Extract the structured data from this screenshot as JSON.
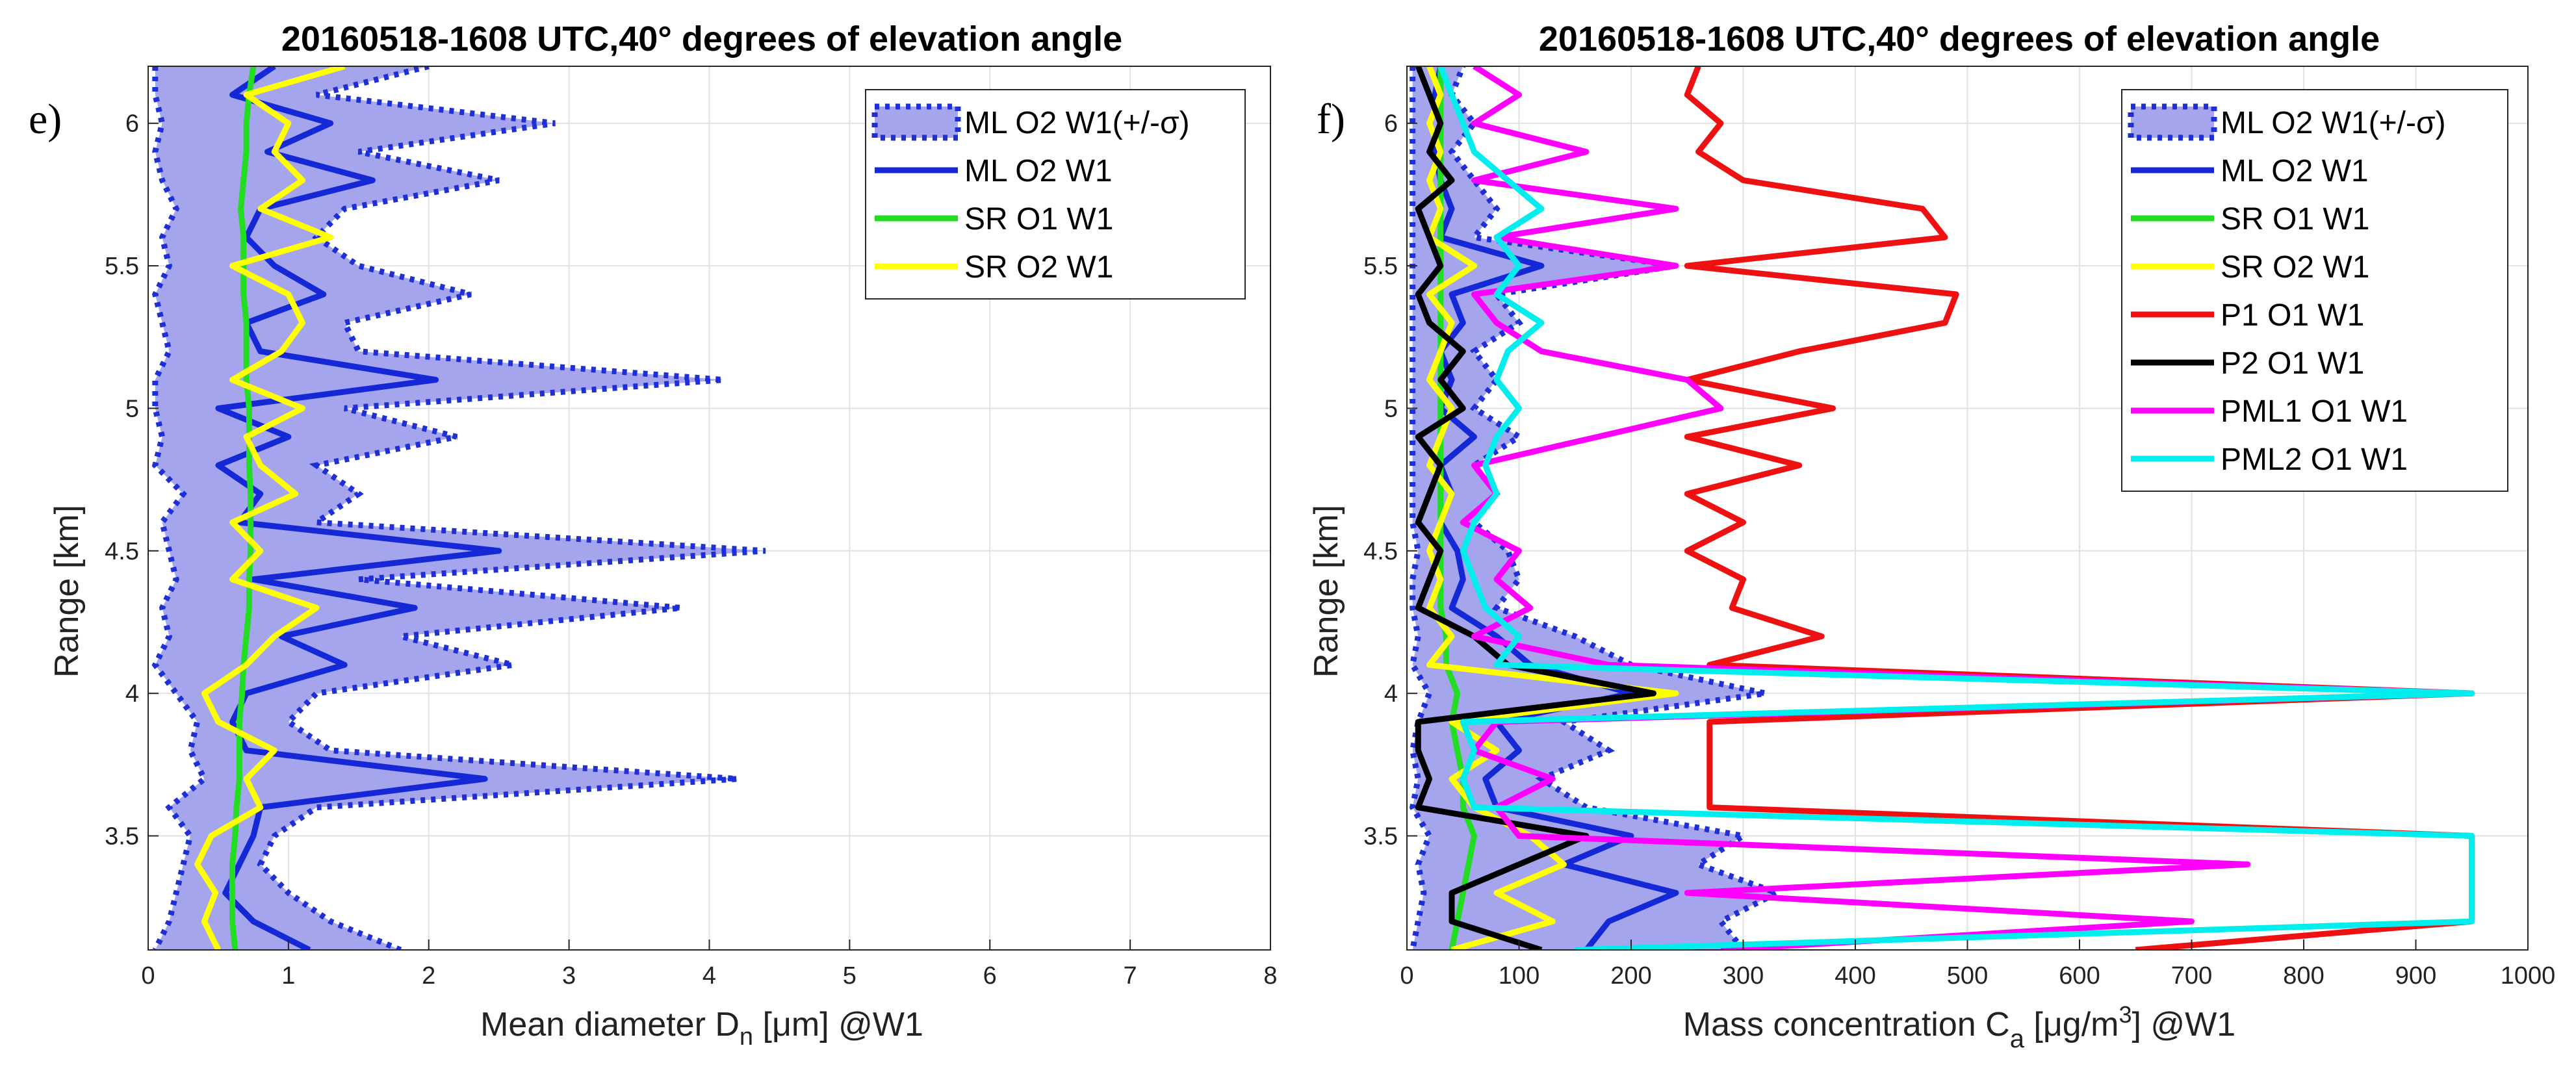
{
  "panels": [
    {
      "label": "e)",
      "title": "20160518-1608 UTC,40° degrees of elevation angle",
      "xlabel": "Mean diameter D",
      "xlabel_sub": "n",
      "xlabel_tail": " [μm] @W1",
      "ylabel": "Range [km]"
    },
    {
      "label": "f)",
      "title": "20160518-1608 UTC,40° degrees of elevation angle",
      "xlabel": "Mass concentration C",
      "xlabel_sub": "a",
      "xlabel_tail": " [μg/m",
      "xlabel_sup": "3",
      "xlabel_end": "] @W1",
      "ylabel": "Range [km]"
    }
  ],
  "colors": {
    "ml_band": "#a5a5ee",
    "ml_band_edge": "#1f2fd6",
    "ml": "#1428d6",
    "sr_o1": "#22dd22",
    "sr_o2": "#ffff00",
    "p1": "#ee1111",
    "p2": "#000000",
    "pml1": "#ff00ff",
    "pml2": "#00eeee"
  },
  "chart_data": [
    {
      "type": "line",
      "panel": "e)",
      "title": "20160518-1608 UTC,40° degrees of elevation angle",
      "xlabel": "Mean diameter D_n [μm] @W1",
      "ylabel": "Range [km]",
      "xlim": [
        0,
        8
      ],
      "ylim": [
        3.1,
        6.2
      ],
      "xticks": [
        0,
        1,
        2,
        3,
        4,
        5,
        6,
        7,
        8
      ],
      "yticks": [
        3.5,
        4,
        4.5,
        5,
        5.5,
        6
      ],
      "grid": true,
      "legend_position": "top-right",
      "legend": [
        "ML O2 W1(+/-σ)",
        "ML O2 W1",
        "SR O1 W1",
        "SR O2 W1"
      ],
      "y": [
        3.1,
        3.2,
        3.3,
        3.4,
        3.5,
        3.6,
        3.7,
        3.8,
        3.9,
        4.0,
        4.1,
        4.2,
        4.3,
        4.4,
        4.5,
        4.6,
        4.7,
        4.8,
        4.9,
        5.0,
        5.1,
        5.2,
        5.3,
        5.4,
        5.5,
        5.6,
        5.7,
        5.8,
        5.9,
        6.0,
        6.1,
        6.2
      ],
      "band": {
        "name": "ML O2 W1(+/-σ)",
        "lower": [
          0.05,
          0.15,
          0.2,
          0.25,
          0.3,
          0.15,
          0.4,
          0.3,
          0.35,
          0.2,
          0.05,
          0.15,
          0.1,
          0.2,
          0.15,
          0.1,
          0.25,
          0.05,
          0.1,
          0.05,
          0.05,
          0.15,
          0.1,
          0.05,
          0.15,
          0.1,
          0.2,
          0.1,
          0.05,
          0.1,
          0.05,
          0.05
        ],
        "upper": [
          1.8,
          1.3,
          1.0,
          0.8,
          0.9,
          1.2,
          4.2,
          1.3,
          1.0,
          1.2,
          2.6,
          1.8,
          3.8,
          1.5,
          4.4,
          1.2,
          1.5,
          1.2,
          2.2,
          1.4,
          4.1,
          1.5,
          1.4,
          2.3,
          1.5,
          1.2,
          1.4,
          2.5,
          1.5,
          2.9,
          1.2,
          2.0
        ]
      },
      "series": [
        {
          "name": "ML O2 W1",
          "values": [
            1.15,
            0.75,
            0.55,
            0.65,
            0.75,
            0.8,
            2.4,
            0.7,
            0.6,
            0.7,
            1.4,
            0.95,
            1.9,
            0.75,
            2.5,
            0.65,
            0.8,
            0.5,
            1.0,
            0.5,
            2.05,
            0.8,
            0.7,
            1.25,
            0.9,
            0.7,
            0.8,
            1.6,
            0.85,
            1.3,
            0.6,
            0.9
          ]
        },
        {
          "name": "SR O1 W1",
          "values": [
            0.62,
            0.6,
            0.6,
            0.6,
            0.62,
            0.63,
            0.65,
            0.65,
            0.65,
            0.67,
            0.68,
            0.7,
            0.72,
            0.72,
            0.73,
            0.73,
            0.73,
            0.72,
            0.72,
            0.72,
            0.7,
            0.7,
            0.7,
            0.68,
            0.68,
            0.68,
            0.66,
            0.68,
            0.7,
            0.7,
            0.72,
            0.75
          ]
        },
        {
          "name": "SR O2 W1",
          "values": [
            0.5,
            0.4,
            0.48,
            0.35,
            0.45,
            0.8,
            0.7,
            0.9,
            0.5,
            0.4,
            0.7,
            0.9,
            1.2,
            0.6,
            0.8,
            0.6,
            1.05,
            0.8,
            0.7,
            1.1,
            0.6,
            0.95,
            1.1,
            1.0,
            0.6,
            1.3,
            0.8,
            1.1,
            0.9,
            1.0,
            0.7,
            1.4
          ]
        }
      ]
    },
    {
      "type": "line",
      "panel": "f)",
      "title": "20160518-1608 UTC,40° degrees of elevation angle",
      "xlabel": "Mass concentration C_a [μg/m^3] @W1",
      "ylabel": "Range [km]",
      "xlim": [
        0,
        1000
      ],
      "ylim": [
        3.1,
        6.2
      ],
      "xticks": [
        0,
        100,
        200,
        300,
        400,
        500,
        600,
        700,
        800,
        900,
        1000
      ],
      "yticks": [
        3.5,
        4,
        4.5,
        5,
        5.5,
        6
      ],
      "grid": true,
      "legend_position": "top-right",
      "legend": [
        "ML O2 W1(+/-σ)",
        "ML O2 W1",
        "SR O1 W1",
        "SR O2 W1",
        "P1 O1 W1",
        "P2 O1 W1",
        "PML1 O1 W1",
        "PML2 O1 W1"
      ],
      "y": [
        3.1,
        3.2,
        3.3,
        3.4,
        3.5,
        3.6,
        3.7,
        3.8,
        3.9,
        4.0,
        4.1,
        4.2,
        4.3,
        4.4,
        4.5,
        4.6,
        4.7,
        4.8,
        4.9,
        5.0,
        5.1,
        5.2,
        5.3,
        5.4,
        5.5,
        5.6,
        5.7,
        5.8,
        5.9,
        6.0,
        6.1,
        6.2
      ],
      "band": {
        "name": "ML O2 W1(+/-σ)",
        "lower": [
          5,
          10,
          15,
          10,
          20,
          5,
          10,
          5,
          10,
          20,
          5,
          10,
          5,
          5,
          10,
          5,
          5,
          5,
          5,
          5,
          5,
          5,
          5,
          5,
          5,
          5,
          5,
          5,
          5,
          5,
          5,
          5
        ],
        "upper": [
          300,
          280,
          330,
          260,
          300,
          160,
          120,
          180,
          140,
          320,
          200,
          150,
          80,
          100,
          90,
          60,
          80,
          60,
          100,
          60,
          80,
          60,
          100,
          80,
          240,
          60,
          80,
          60,
          40,
          60,
          40,
          50
        ]
      },
      "series": [
        {
          "name": "ML O2 W1",
          "values": [
            160,
            180,
            240,
            140,
            200,
            80,
            70,
            100,
            80,
            200,
            110,
            80,
            40,
            50,
            45,
            30,
            40,
            30,
            60,
            30,
            40,
            30,
            50,
            40,
            120,
            30,
            40,
            30,
            25,
            30,
            25,
            30
          ]
        },
        {
          "name": "SR O1 W1",
          "values": [
            40,
            45,
            50,
            55,
            60,
            50,
            50,
            45,
            40,
            45,
            35,
            35,
            30,
            30,
            30,
            30,
            30,
            30,
            30,
            30,
            30,
            30,
            30,
            30,
            30,
            30,
            30,
            30,
            30,
            30,
            30,
            30
          ]
        },
        {
          "name": "SR O2 W1",
          "values": [
            40,
            130,
            80,
            140,
            110,
            60,
            40,
            80,
            40,
            240,
            20,
            40,
            20,
            30,
            20,
            30,
            40,
            20,
            30,
            40,
            20,
            30,
            40,
            20,
            60,
            20,
            30,
            20,
            30,
            20,
            30,
            20
          ]
        },
        {
          "name": "P1 O1 W1",
          "values": [
            650,
            950,
            950,
            950,
            950,
            270,
            270,
            270,
            270,
            950,
            270,
            370,
            290,
            300,
            250,
            300,
            250,
            350,
            250,
            380,
            250,
            350,
            480,
            490,
            250,
            480,
            460,
            300,
            260,
            280,
            250,
            260
          ]
        },
        {
          "name": "P2 O1 W1",
          "values": [
            120,
            40,
            40,
            100,
            160,
            10,
            20,
            10,
            10,
            220,
            90,
            60,
            10,
            20,
            30,
            10,
            20,
            30,
            10,
            50,
            30,
            50,
            20,
            10,
            30,
            20,
            10,
            40,
            20,
            30,
            20,
            10
          ]
        },
        {
          "name": "PML1 O1 W1",
          "values": [
            280,
            700,
            250,
            750,
            100,
            80,
            130,
            60,
            80,
            950,
            180,
            60,
            110,
            80,
            100,
            50,
            80,
            60,
            170,
            280,
            250,
            120,
            80,
            60,
            240,
            80,
            240,
            60,
            160,
            60,
            100,
            60
          ]
        },
        {
          "name": "PML2 O1 W1",
          "values": [
            150,
            950,
            950,
            950,
            950,
            60,
            50,
            60,
            50,
            950,
            80,
            100,
            70,
            60,
            50,
            60,
            80,
            70,
            80,
            100,
            80,
            90,
            120,
            80,
            100,
            80,
            120,
            90,
            60,
            50,
            40,
            30
          ]
        }
      ]
    }
  ]
}
